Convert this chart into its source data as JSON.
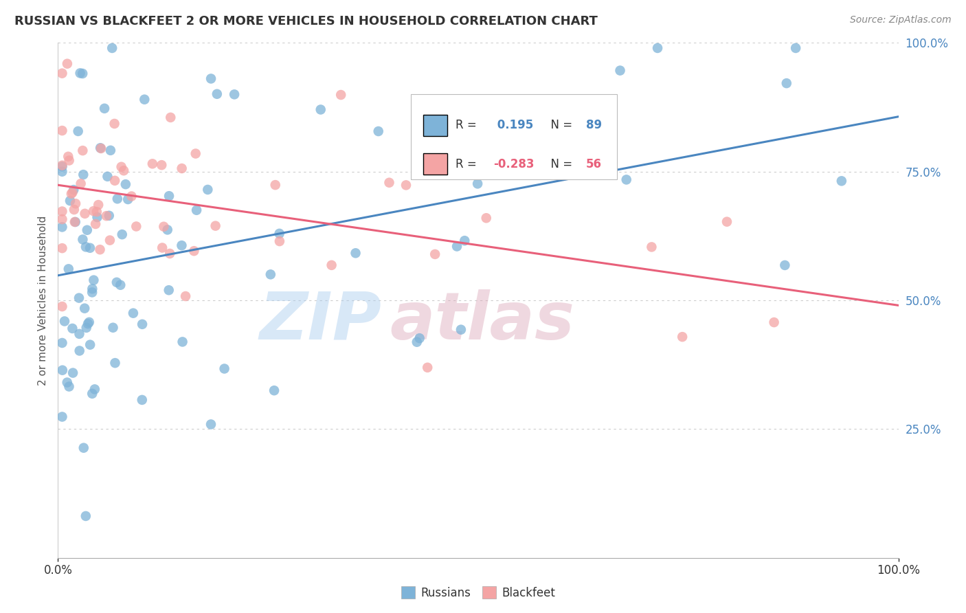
{
  "title": "RUSSIAN VS BLACKFEET 2 OR MORE VEHICLES IN HOUSEHOLD CORRELATION CHART",
  "source": "Source: ZipAtlas.com",
  "ylabel": "2 or more Vehicles in Household",
  "russian_R": 0.195,
  "russian_N": 89,
  "blackfeet_R": -0.283,
  "blackfeet_N": 56,
  "russian_color": "#7EB3D8",
  "blackfeet_color": "#F4A4A4",
  "russian_line_color": "#4A86C0",
  "blackfeet_line_color": "#E8607A",
  "legend_label_russian": "Russians",
  "legend_label_blackfeet": "Blackfeet",
  "title_color": "#333333",
  "source_color": "#888888",
  "ytick_color": "#4A86C0",
  "xtick_color": "#333333",
  "ylabel_color": "#555555",
  "grid_color": "#CCCCCC",
  "watermark_zip_color": "#AACCEE",
  "watermark_atlas_color": "#DDAABB"
}
